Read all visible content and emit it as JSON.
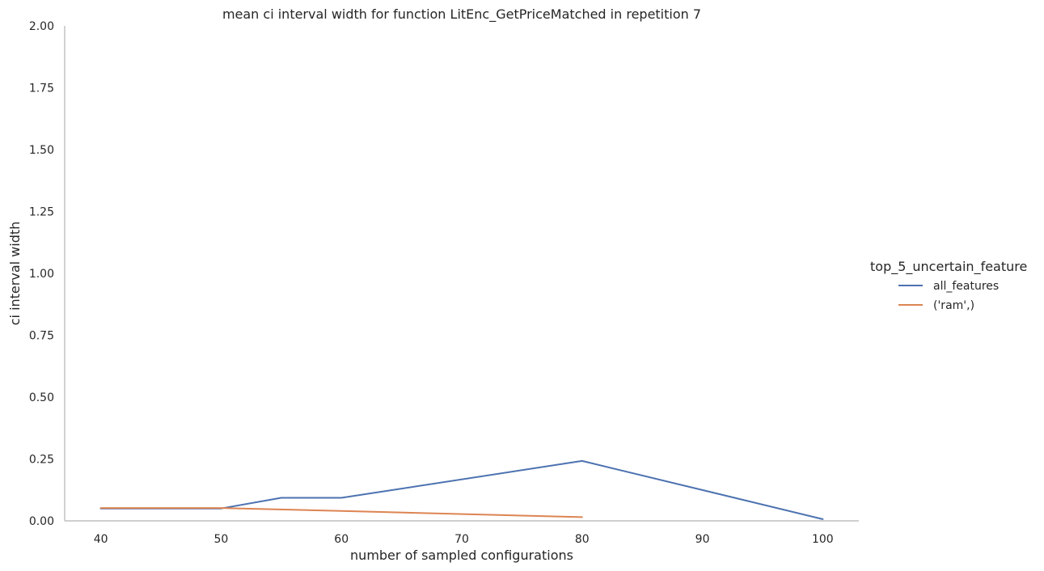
{
  "chart_data": {
    "type": "line",
    "title": "mean ci interval width for function LitEnc_GetPriceMatched in repetition 7",
    "xlabel": "number of sampled configurations",
    "ylabel": "ci interval width",
    "xlim": [
      37,
      103
    ],
    "ylim": [
      0,
      2
    ],
    "x_ticks": [
      40,
      50,
      60,
      70,
      80,
      90,
      100
    ],
    "x_tick_labels": [
      "40",
      "50",
      "60",
      "70",
      "80",
      "90",
      "100"
    ],
    "y_ticks": [
      0,
      0.25,
      0.5,
      0.75,
      1.0,
      1.25,
      1.5,
      1.75,
      2.0
    ],
    "y_tick_labels": [
      "0.00",
      "0.25",
      "0.50",
      "0.75",
      "1.00",
      "1.25",
      "1.50",
      "1.75",
      "2.00"
    ],
    "grid": false,
    "legend": {
      "title": "top_5_uncertain_feature",
      "position": "right"
    },
    "series": [
      {
        "name": "all_features",
        "color": "#4c72b0",
        "x": [
          40,
          50,
          55,
          60,
          80,
          100
        ],
        "y": [
          0.05,
          0.05,
          0.093,
          0.093,
          0.242,
          0.007
        ]
      },
      {
        "name": "('ram',)",
        "color": "#dd8452",
        "x": [
          40,
          50,
          60,
          80
        ],
        "y": [
          0.052,
          0.052,
          0.04,
          0.015
        ]
      }
    ]
  }
}
